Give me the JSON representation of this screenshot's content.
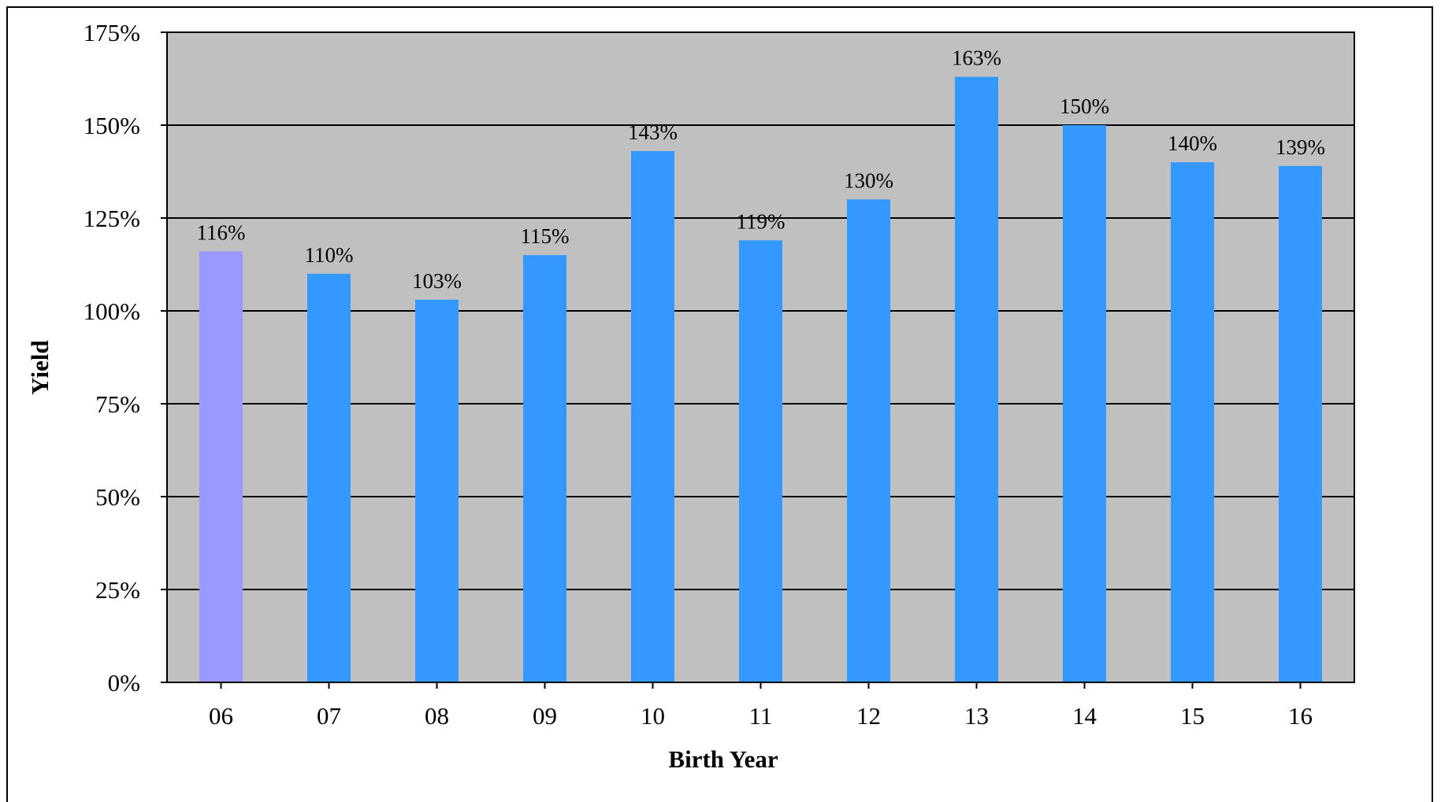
{
  "chart_data": {
    "type": "bar",
    "title": "",
    "xlabel": "Birth Year",
    "ylabel": "Yield",
    "categories": [
      "06",
      "07",
      "08",
      "09",
      "10",
      "11",
      "12",
      "13",
      "14",
      "15",
      "16"
    ],
    "values": [
      116,
      110,
      103,
      115,
      143,
      119,
      130,
      163,
      150,
      140,
      139
    ],
    "data_labels": [
      "116%",
      "110%",
      "103%",
      "115%",
      "143%",
      "119%",
      "130%",
      "163%",
      "150%",
      "140%",
      "139%"
    ],
    "ylim": [
      0,
      175
    ],
    "yticks": [
      0,
      25,
      50,
      75,
      100,
      125,
      150,
      175
    ],
    "ytick_labels": [
      "0%",
      "25%",
      "50%",
      "75%",
      "100%",
      "125%",
      "150%",
      "175%"
    ],
    "grid": true,
    "legend": "none",
    "colors": {
      "plot_background": "#c0c0c0",
      "bar": "#3399ff",
      "highlight_bar": "#9999ff",
      "gridline": "#000000"
    },
    "highlight_index": 0
  }
}
